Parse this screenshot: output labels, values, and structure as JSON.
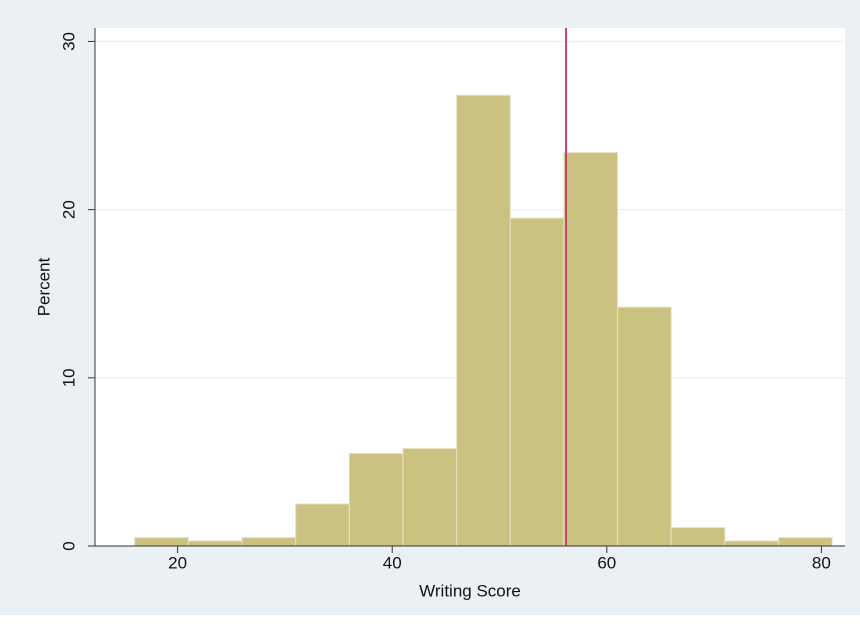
{
  "chart_data": {
    "type": "histogram",
    "x_label": "Writing Score",
    "y_label": "Percent",
    "bins": [
      16,
      21,
      26,
      31,
      36,
      41,
      46,
      51,
      56,
      61,
      66,
      71,
      76,
      81
    ],
    "values": [
      0.5,
      0.3,
      0.5,
      2.5,
      5.5,
      5.8,
      26.8,
      19.5,
      23.4,
      14.2,
      1.1,
      0.3,
      0.5
    ],
    "color": "#cbc282",
    "xlim": [
      12.3,
      82.2
    ],
    "xticks": [
      20,
      40,
      60,
      80
    ],
    "ylim": [
      0,
      30.8
    ],
    "yticks": [
      0,
      10,
      20,
      30
    ],
    "grid": true,
    "reference_line": {
      "x": 56.2,
      "color": "#c4476a"
    }
  }
}
